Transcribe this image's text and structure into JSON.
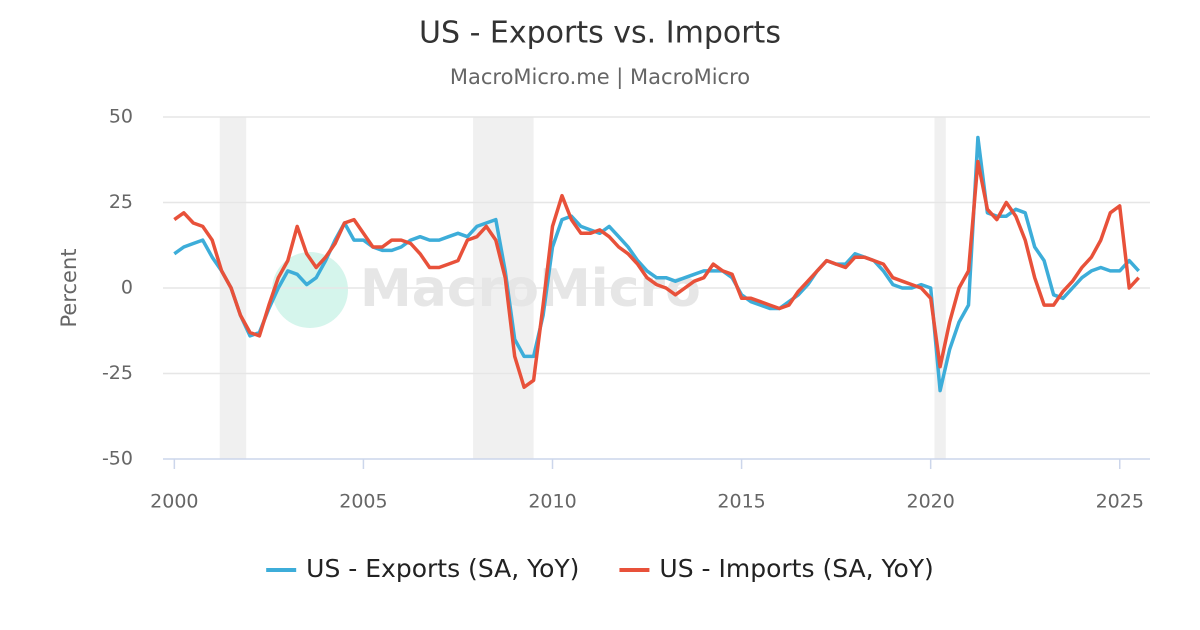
{
  "chart_data": {
    "type": "line",
    "title": "US - Exports vs. Imports",
    "subtitle": "MacroMicro.me | MacroMicro",
    "watermark": "MacroMicro",
    "y_label": "Percent",
    "x": [
      2000,
      2000.25,
      2000.5,
      2000.75,
      2001,
      2001.25,
      2001.5,
      2001.75,
      2002,
      2002.25,
      2002.5,
      2002.75,
      2003,
      2003.25,
      2003.5,
      2003.75,
      2004,
      2004.25,
      2004.5,
      2004.75,
      2005,
      2005.25,
      2005.5,
      2005.75,
      2006,
      2006.25,
      2006.5,
      2006.75,
      2007,
      2007.25,
      2007.5,
      2007.75,
      2008,
      2008.25,
      2008.5,
      2008.75,
      2009,
      2009.25,
      2009.5,
      2009.75,
      2010,
      2010.25,
      2010.5,
      2010.75,
      2011,
      2011.25,
      2011.5,
      2011.75,
      2012,
      2012.25,
      2012.5,
      2012.75,
      2013,
      2013.25,
      2013.5,
      2013.75,
      2014,
      2014.25,
      2014.5,
      2014.75,
      2015,
      2015.25,
      2015.5,
      2015.75,
      2016,
      2016.25,
      2016.5,
      2016.75,
      2017,
      2017.25,
      2017.5,
      2017.75,
      2018,
      2018.25,
      2018.5,
      2018.75,
      2019,
      2019.25,
      2019.5,
      2019.75,
      2020,
      2020.25,
      2020.5,
      2020.75,
      2021,
      2021.25,
      2021.5,
      2021.75,
      2022,
      2022.25,
      2022.5,
      2022.75,
      2023,
      2023.25,
      2023.5,
      2023.75,
      2024,
      2024.25,
      2024.5,
      2024.75,
      2025,
      2025.25,
      2025.5
    ],
    "series": [
      {
        "name": "US - Exports (SA, YoY)",
        "color": "#3dadd9",
        "values": [
          10,
          12,
          13,
          14,
          9,
          5,
          0,
          -8,
          -14,
          -13,
          -6,
          0,
          5,
          4,
          1,
          3,
          8,
          14,
          19,
          14,
          14,
          12,
          11,
          11,
          12,
          14,
          15,
          14,
          14,
          15,
          16,
          15,
          18,
          19,
          20,
          5,
          -15,
          -20,
          -20,
          -8,
          12,
          20,
          21,
          18,
          17,
          16,
          18,
          15,
          12,
          8,
          5,
          3,
          3,
          2,
          3,
          4,
          5,
          5,
          5,
          3,
          -2,
          -4,
          -5,
          -6,
          -6,
          -4,
          -2,
          1,
          5,
          8,
          7,
          7,
          10,
          9,
          8,
          5,
          1,
          0,
          0,
          1,
          0,
          -30,
          -18,
          -10,
          -5,
          44,
          22,
          21,
          21,
          23,
          22,
          12,
          8,
          -2,
          -3,
          0,
          3,
          5,
          6,
          5,
          5,
          8,
          5
        ]
      },
      {
        "name": "US - Imports (SA, YoY)",
        "color": "#e8513a",
        "values": [
          20,
          22,
          19,
          18,
          14,
          5,
          0,
          -8,
          -13,
          -14,
          -5,
          3,
          8,
          18,
          10,
          6,
          9,
          13,
          19,
          20,
          16,
          12,
          12,
          14,
          14,
          13,
          10,
          6,
          6,
          7,
          8,
          14,
          15,
          18,
          14,
          3,
          -20,
          -29,
          -27,
          -5,
          18,
          27,
          20,
          16,
          16,
          17,
          15,
          12,
          10,
          7,
          3,
          1,
          0,
          -2,
          0,
          2,
          3,
          7,
          5,
          4,
          -3,
          -3,
          -4,
          -5,
          -6,
          -5,
          -1,
          2,
          5,
          8,
          7,
          6,
          9,
          9,
          8,
          7,
          3,
          2,
          1,
          0,
          -3,
          -23,
          -10,
          0,
          5,
          37,
          23,
          20,
          25,
          21,
          14,
          3,
          -5,
          -5,
          -1,
          2,
          6,
          9,
          14,
          22,
          24,
          0,
          3
        ]
      }
    ],
    "shaded_ranges": [
      [
        2001.2,
        2001.9
      ],
      [
        2007.9,
        2009.5
      ],
      [
        2020.1,
        2020.4
      ]
    ],
    "xlim": [
      1999.7,
      2025.8
    ],
    "xticks": [
      2000,
      2005,
      2010,
      2015,
      2020,
      2025
    ],
    "ylim": [
      -50,
      50
    ],
    "yticks": [
      -50,
      -25,
      0,
      25,
      50
    ],
    "grid": true,
    "legend": "bottom"
  }
}
